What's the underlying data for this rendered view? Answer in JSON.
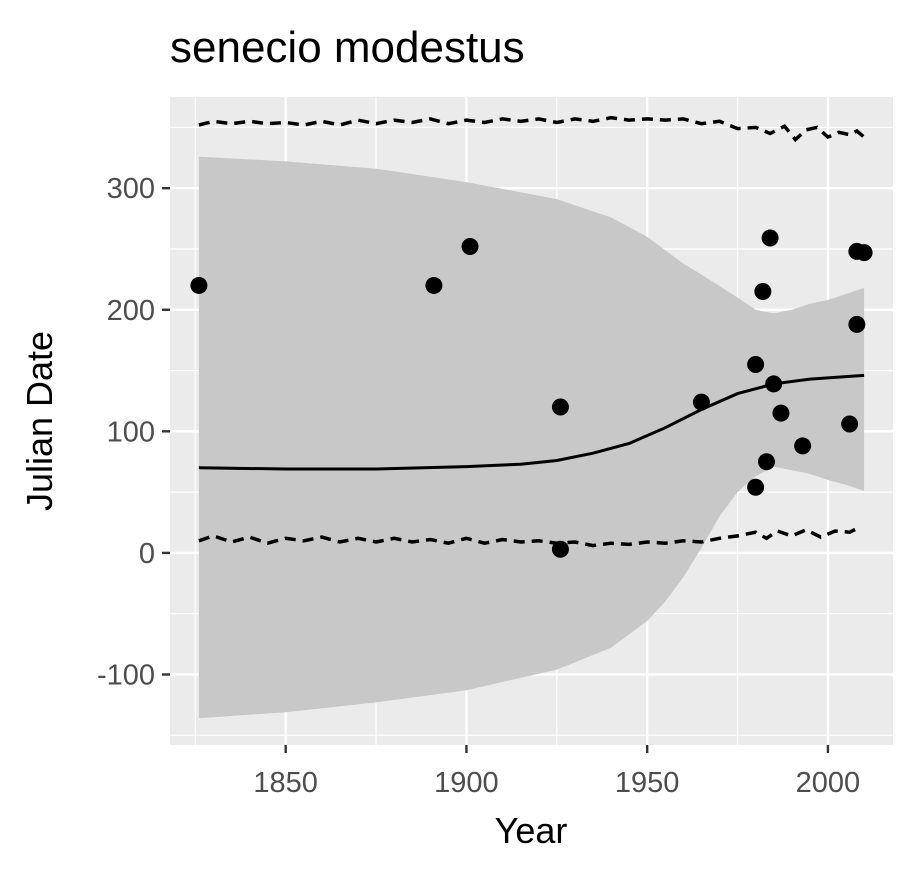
{
  "chart_data": {
    "type": "scatter",
    "title": "senecio modestus",
    "xlabel": "Year",
    "ylabel": "Julian Date",
    "xlim": [
      1818,
      2018
    ],
    "ylim": [
      -158,
      375
    ],
    "xticks": [
      1850,
      1900,
      1950,
      2000
    ],
    "yticks": [
      -100,
      0,
      100,
      200,
      300
    ],
    "grid": true,
    "legend": "none",
    "colors": {
      "panel": "#ebebeb",
      "grid": "#ffffff",
      "ribbon": "#c8c8c8",
      "points": "#000000",
      "line": "#000000",
      "tick_text": "#4d4d4d"
    },
    "points": [
      {
        "x": 1826,
        "y": 220
      },
      {
        "x": 1891,
        "y": 220
      },
      {
        "x": 1901,
        "y": 252
      },
      {
        "x": 1926,
        "y": 120
      },
      {
        "x": 1926,
        "y": 3
      },
      {
        "x": 1965,
        "y": 124
      },
      {
        "x": 1980,
        "y": 155
      },
      {
        "x": 1980,
        "y": 54
      },
      {
        "x": 1982,
        "y": 215
      },
      {
        "x": 1983,
        "y": 75
      },
      {
        "x": 1984,
        "y": 259
      },
      {
        "x": 1985,
        "y": 139
      },
      {
        "x": 1987,
        "y": 115
      },
      {
        "x": 1993,
        "y": 88
      },
      {
        "x": 2006,
        "y": 106
      },
      {
        "x": 2008,
        "y": 248
      },
      {
        "x": 2008,
        "y": 188
      },
      {
        "x": 2010,
        "y": 247
      }
    ],
    "fit_line": [
      {
        "x": 1826,
        "y": 70
      },
      {
        "x": 1850,
        "y": 69
      },
      {
        "x": 1875,
        "y": 69
      },
      {
        "x": 1900,
        "y": 71
      },
      {
        "x": 1915,
        "y": 73
      },
      {
        "x": 1925,
        "y": 76
      },
      {
        "x": 1935,
        "y": 82
      },
      {
        "x": 1945,
        "y": 90
      },
      {
        "x": 1955,
        "y": 103
      },
      {
        "x": 1965,
        "y": 118
      },
      {
        "x": 1975,
        "y": 131
      },
      {
        "x": 1985,
        "y": 139
      },
      {
        "x": 1995,
        "y": 143
      },
      {
        "x": 2010,
        "y": 146
      }
    ],
    "ribbon": {
      "upper": [
        {
          "x": 1826,
          "y": 326
        },
        {
          "x": 1850,
          "y": 322
        },
        {
          "x": 1875,
          "y": 316
        },
        {
          "x": 1900,
          "y": 305
        },
        {
          "x": 1925,
          "y": 291
        },
        {
          "x": 1940,
          "y": 276
        },
        {
          "x": 1950,
          "y": 260
        },
        {
          "x": 1960,
          "y": 238
        },
        {
          "x": 1965,
          "y": 229
        },
        {
          "x": 1975,
          "y": 210
        },
        {
          "x": 1980,
          "y": 200
        },
        {
          "x": 1985,
          "y": 197
        },
        {
          "x": 1990,
          "y": 200
        },
        {
          "x": 1995,
          "y": 205
        },
        {
          "x": 2000,
          "y": 208
        },
        {
          "x": 2005,
          "y": 213
        },
        {
          "x": 2010,
          "y": 218
        }
      ],
      "lower": [
        {
          "x": 2010,
          "y": 51
        },
        {
          "x": 2005,
          "y": 56
        },
        {
          "x": 2000,
          "y": 60
        },
        {
          "x": 1995,
          "y": 65
        },
        {
          "x": 1990,
          "y": 68
        },
        {
          "x": 1985,
          "y": 71
        },
        {
          "x": 1980,
          "y": 63
        },
        {
          "x": 1975,
          "y": 50
        },
        {
          "x": 1970,
          "y": 30
        },
        {
          "x": 1965,
          "y": 4
        },
        {
          "x": 1960,
          "y": -20
        },
        {
          "x": 1955,
          "y": -40
        },
        {
          "x": 1950,
          "y": -56
        },
        {
          "x": 1940,
          "y": -78
        },
        {
          "x": 1925,
          "y": -96
        },
        {
          "x": 1900,
          "y": -113
        },
        {
          "x": 1875,
          "y": -123
        },
        {
          "x": 1850,
          "y": -131
        },
        {
          "x": 1826,
          "y": -136
        }
      ]
    },
    "upper_dashed": [
      {
        "x": 1826,
        "y": 352
      },
      {
        "x": 1830,
        "y": 355
      },
      {
        "x": 1835,
        "y": 353
      },
      {
        "x": 1840,
        "y": 355
      },
      {
        "x": 1845,
        "y": 353
      },
      {
        "x": 1850,
        "y": 354
      },
      {
        "x": 1855,
        "y": 352
      },
      {
        "x": 1860,
        "y": 355
      },
      {
        "x": 1865,
        "y": 352
      },
      {
        "x": 1870,
        "y": 356
      },
      {
        "x": 1875,
        "y": 353
      },
      {
        "x": 1880,
        "y": 356
      },
      {
        "x": 1885,
        "y": 354
      },
      {
        "x": 1890,
        "y": 357
      },
      {
        "x": 1895,
        "y": 353
      },
      {
        "x": 1900,
        "y": 356
      },
      {
        "x": 1905,
        "y": 354
      },
      {
        "x": 1910,
        "y": 357
      },
      {
        "x": 1915,
        "y": 355
      },
      {
        "x": 1920,
        "y": 357
      },
      {
        "x": 1925,
        "y": 354
      },
      {
        "x": 1930,
        "y": 357
      },
      {
        "x": 1935,
        "y": 355
      },
      {
        "x": 1940,
        "y": 358
      },
      {
        "x": 1945,
        "y": 356
      },
      {
        "x": 1950,
        "y": 357
      },
      {
        "x": 1955,
        "y": 356
      },
      {
        "x": 1960,
        "y": 357
      },
      {
        "x": 1965,
        "y": 353
      },
      {
        "x": 1970,
        "y": 355
      },
      {
        "x": 1975,
        "y": 349
      },
      {
        "x": 1980,
        "y": 350
      },
      {
        "x": 1984,
        "y": 345
      },
      {
        "x": 1988,
        "y": 351
      },
      {
        "x": 1991,
        "y": 340
      },
      {
        "x": 1994,
        "y": 348
      },
      {
        "x": 1997,
        "y": 350
      },
      {
        "x": 2000,
        "y": 342
      },
      {
        "x": 2003,
        "y": 346
      },
      {
        "x": 2006,
        "y": 344
      },
      {
        "x": 2008,
        "y": 347
      },
      {
        "x": 2010,
        "y": 342
      }
    ],
    "lower_dashed": [
      {
        "x": 1826,
        "y": 10
      },
      {
        "x": 1830,
        "y": 14
      },
      {
        "x": 1835,
        "y": 9
      },
      {
        "x": 1840,
        "y": 13
      },
      {
        "x": 1845,
        "y": 8
      },
      {
        "x": 1850,
        "y": 12
      },
      {
        "x": 1855,
        "y": 10
      },
      {
        "x": 1860,
        "y": 13
      },
      {
        "x": 1865,
        "y": 9
      },
      {
        "x": 1870,
        "y": 12
      },
      {
        "x": 1875,
        "y": 9
      },
      {
        "x": 1880,
        "y": 12
      },
      {
        "x": 1885,
        "y": 9
      },
      {
        "x": 1890,
        "y": 11
      },
      {
        "x": 1895,
        "y": 8
      },
      {
        "x": 1900,
        "y": 12
      },
      {
        "x": 1905,
        "y": 8
      },
      {
        "x": 1910,
        "y": 11
      },
      {
        "x": 1915,
        "y": 9
      },
      {
        "x": 1920,
        "y": 10
      },
      {
        "x": 1925,
        "y": 8
      },
      {
        "x": 1930,
        "y": 9
      },
      {
        "x": 1935,
        "y": 6
      },
      {
        "x": 1940,
        "y": 8
      },
      {
        "x": 1945,
        "y": 7
      },
      {
        "x": 1950,
        "y": 9
      },
      {
        "x": 1955,
        "y": 8
      },
      {
        "x": 1960,
        "y": 10
      },
      {
        "x": 1965,
        "y": 9
      },
      {
        "x": 1970,
        "y": 12
      },
      {
        "x": 1975,
        "y": 14
      },
      {
        "x": 1980,
        "y": 17
      },
      {
        "x": 1983,
        "y": 12
      },
      {
        "x": 1986,
        "y": 18
      },
      {
        "x": 1990,
        "y": 14
      },
      {
        "x": 1994,
        "y": 19
      },
      {
        "x": 1998,
        "y": 13
      },
      {
        "x": 2002,
        "y": 18
      },
      {
        "x": 2006,
        "y": 17
      },
      {
        "x": 2008,
        "y": 20
      }
    ]
  }
}
